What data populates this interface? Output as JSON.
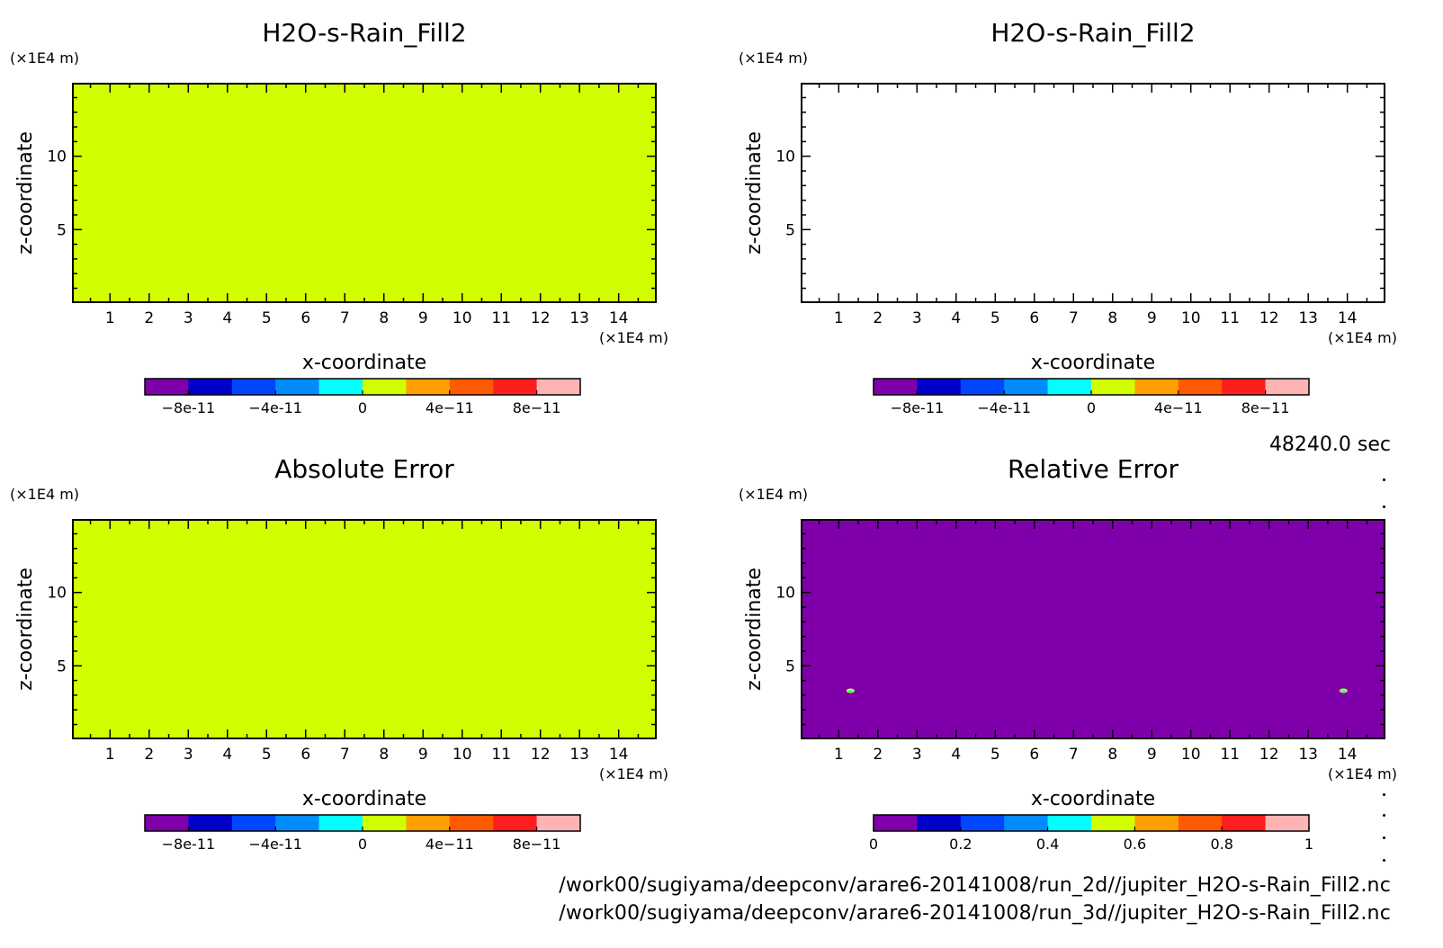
{
  "time_label": "48240.0 sec",
  "footer": {
    "line1": "/work00/sugiyama/deepconv/arare6-20141008/run_2d//jupiter_H2O-s-Rain_Fill2.nc",
    "line2": "/work00/sugiyama/deepconv/arare6-20141008/run_3d//jupiter_H2O-s-Rain_Fill2.nc"
  },
  "colorbar_colors": [
    "#7f00aa",
    "#0000c8",
    "#0046ff",
    "#008cff",
    "#00ffff",
    "#d2ff00",
    "#ffa000",
    "#ff5a00",
    "#ff1e1e",
    "#ffb4b4"
  ],
  "chart_data": [
    {
      "type": "heatmap",
      "title": "H2O-s-Rain_Fill2",
      "xlabel": "x-coordinate",
      "ylabel": "z-coordinate",
      "x_unit": "(×1E4 m)",
      "y_unit": "(×1E4 m)",
      "xlim": [
        0.05,
        14.95
      ],
      "ylim": [
        0.05,
        14.95
      ],
      "xticks": [
        1,
        2,
        3,
        4,
        5,
        6,
        7,
        8,
        9,
        10,
        11,
        12,
        13,
        14
      ],
      "yticks": [
        5,
        10
      ],
      "fill": "uniform",
      "field_color": "#d2ff00",
      "field_value": 0,
      "colorbar": {
        "levels": [
          -1e-10,
          -8e-11,
          -6e-11,
          -4e-11,
          -2e-11,
          0,
          2e-11,
          4e-11,
          6e-11,
          8e-11,
          1e-10
        ],
        "ticks": [
          {
            "value": -8e-11,
            "label": "-8e-11"
          },
          {
            "value": -4e-11,
            "label": "-4e-11"
          },
          {
            "value": 0,
            "label": "0"
          },
          {
            "value": 4e-11,
            "label": "4e-11"
          },
          {
            "value": 8e-11,
            "label": "8e-11"
          }
        ]
      }
    },
    {
      "type": "heatmap",
      "title": "H2O-s-Rain_Fill2",
      "xlabel": "x-coordinate",
      "ylabel": "z-coordinate",
      "x_unit": "(×1E4 m)",
      "y_unit": "(×1E4 m)",
      "xlim": [
        0.05,
        14.95
      ],
      "ylim": [
        0.05,
        14.95
      ],
      "xticks": [
        1,
        2,
        3,
        4,
        5,
        6,
        7,
        8,
        9,
        10,
        11,
        12,
        13,
        14
      ],
      "yticks": [
        5,
        10
      ],
      "fill": "none",
      "field_color": "#ffffff",
      "colorbar": {
        "levels": [
          -1e-10,
          -8e-11,
          -6e-11,
          -4e-11,
          -2e-11,
          0,
          2e-11,
          4e-11,
          6e-11,
          8e-11,
          1e-10
        ],
        "ticks": [
          {
            "value": -8e-11,
            "label": "-8e-11"
          },
          {
            "value": -4e-11,
            "label": "-4e-11"
          },
          {
            "value": 0,
            "label": "0"
          },
          {
            "value": 4e-11,
            "label": "4e-11"
          },
          {
            "value": 8e-11,
            "label": "8e-11"
          }
        ]
      }
    },
    {
      "type": "heatmap",
      "title": "Absolute Error",
      "xlabel": "x-coordinate",
      "ylabel": "z-coordinate",
      "x_unit": "(×1E4 m)",
      "y_unit": "(×1E4 m)",
      "xlim": [
        0.05,
        14.95
      ],
      "ylim": [
        0.05,
        14.95
      ],
      "xticks": [
        1,
        2,
        3,
        4,
        5,
        6,
        7,
        8,
        9,
        10,
        11,
        12,
        13,
        14
      ],
      "yticks": [
        5,
        10
      ],
      "fill": "uniform",
      "field_color": "#d2ff00",
      "field_value": 0,
      "colorbar": {
        "levels": [
          -1e-10,
          -8e-11,
          -6e-11,
          -4e-11,
          -2e-11,
          0,
          2e-11,
          4e-11,
          6e-11,
          8e-11,
          1e-10
        ],
        "ticks": [
          {
            "value": -8e-11,
            "label": "-8e-11"
          },
          {
            "value": -4e-11,
            "label": "-4e-11"
          },
          {
            "value": 0,
            "label": "0"
          },
          {
            "value": 4e-11,
            "label": "4e-11"
          },
          {
            "value": 8e-11,
            "label": "8e-11"
          }
        ]
      }
    },
    {
      "type": "heatmap",
      "title": "Relative Error",
      "xlabel": "x-coordinate",
      "ylabel": "z-coordinate",
      "x_unit": "(×1E4 m)",
      "y_unit": "(×1E4 m)",
      "xlim": [
        0.05,
        14.95
      ],
      "ylim": [
        0.05,
        14.95
      ],
      "xticks": [
        1,
        2,
        3,
        4,
        5,
        6,
        7,
        8,
        9,
        10,
        11,
        12,
        13,
        14
      ],
      "yticks": [
        5,
        10
      ],
      "fill": "uniform",
      "field_color": "#7f00aa",
      "field_value": 0,
      "spots": [
        {
          "x": 1.3,
          "z": 3.3
        },
        {
          "x": 13.9,
          "z": 3.3
        }
      ],
      "colorbar": {
        "levels": [
          0,
          0.1,
          0.2,
          0.3,
          0.4,
          0.5,
          0.6,
          0.7,
          0.8,
          0.9,
          1
        ],
        "ticks": [
          {
            "value": 0,
            "label": "0"
          },
          {
            "value": 0.2,
            "label": "0.2"
          },
          {
            "value": 0.4,
            "label": "0.4"
          },
          {
            "value": 0.6,
            "label": "0.6"
          },
          {
            "value": 0.8,
            "label": "0.8"
          },
          {
            "value": 1,
            "label": "1"
          }
        ]
      }
    }
  ]
}
